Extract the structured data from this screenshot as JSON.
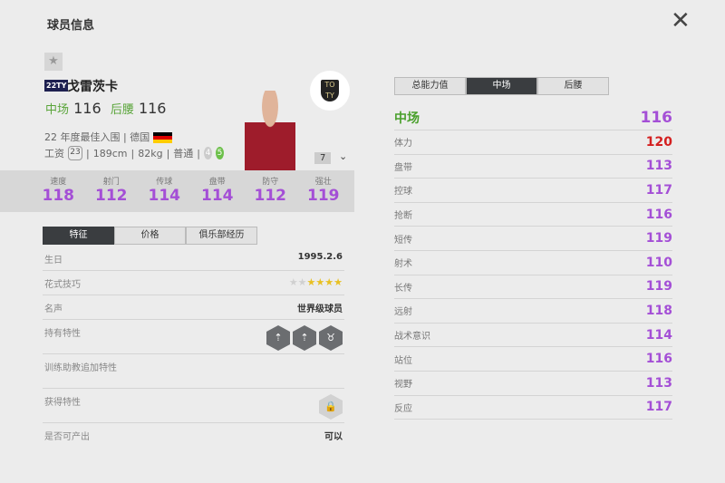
{
  "title": "球员信息",
  "close_icon": "close-icon",
  "player": {
    "season": "22TY",
    "name": "戈雷茨卡",
    "positions": [
      {
        "label": "中场",
        "ovr": "116"
      },
      {
        "label": "后腰",
        "ovr": "116"
      }
    ],
    "line1": "22 年度最佳入围 | 德国",
    "wage": "23",
    "height": "189cm",
    "weight": "82kg",
    "body": "普通",
    "weak_foot": "4",
    "strong_foot": "5",
    "level": "7"
  },
  "stats": [
    {
      "l": "速度",
      "v": "118"
    },
    {
      "l": "射门",
      "v": "112"
    },
    {
      "l": "传球",
      "v": "114"
    },
    {
      "l": "盘带",
      "v": "114"
    },
    {
      "l": "防守",
      "v": "112"
    },
    {
      "l": "强壮",
      "v": "119"
    }
  ],
  "tabs": [
    "特征",
    "价格",
    "俱乐部经历"
  ],
  "details": {
    "birthday_label": "生日",
    "birthday": "1995.2.6",
    "skill_label": "花式技巧",
    "skill_stars": 4,
    "skill_max": 6,
    "fame_label": "名声",
    "fame": "世界级球员",
    "traits_label": "持有特性",
    "coach_label": "训练助教追加特性",
    "acquired_label": "获得特性",
    "produce_label": "是否可产出",
    "produce": "可以"
  },
  "right_tabs": [
    "总能力值",
    "中场",
    "后腰"
  ],
  "right_header": {
    "label": "中场",
    "value": "116"
  },
  "attrs": [
    {
      "l": "体力",
      "v": "120",
      "c": "#d42020"
    },
    {
      "l": "盘带",
      "v": "113"
    },
    {
      "l": "控球",
      "v": "117"
    },
    {
      "l": "抢断",
      "v": "116"
    },
    {
      "l": "短传",
      "v": "119"
    },
    {
      "l": "射术",
      "v": "110"
    },
    {
      "l": "长传",
      "v": "119"
    },
    {
      "l": "远射",
      "v": "118"
    },
    {
      "l": "战术意识",
      "v": "114"
    },
    {
      "l": "站位",
      "v": "116"
    },
    {
      "l": "视野",
      "v": "113"
    },
    {
      "l": "反应",
      "v": "117"
    }
  ],
  "colors": {
    "accent_purple": "#a44fd6",
    "position_green": "#4aa02c",
    "highlight_red": "#d42020"
  }
}
